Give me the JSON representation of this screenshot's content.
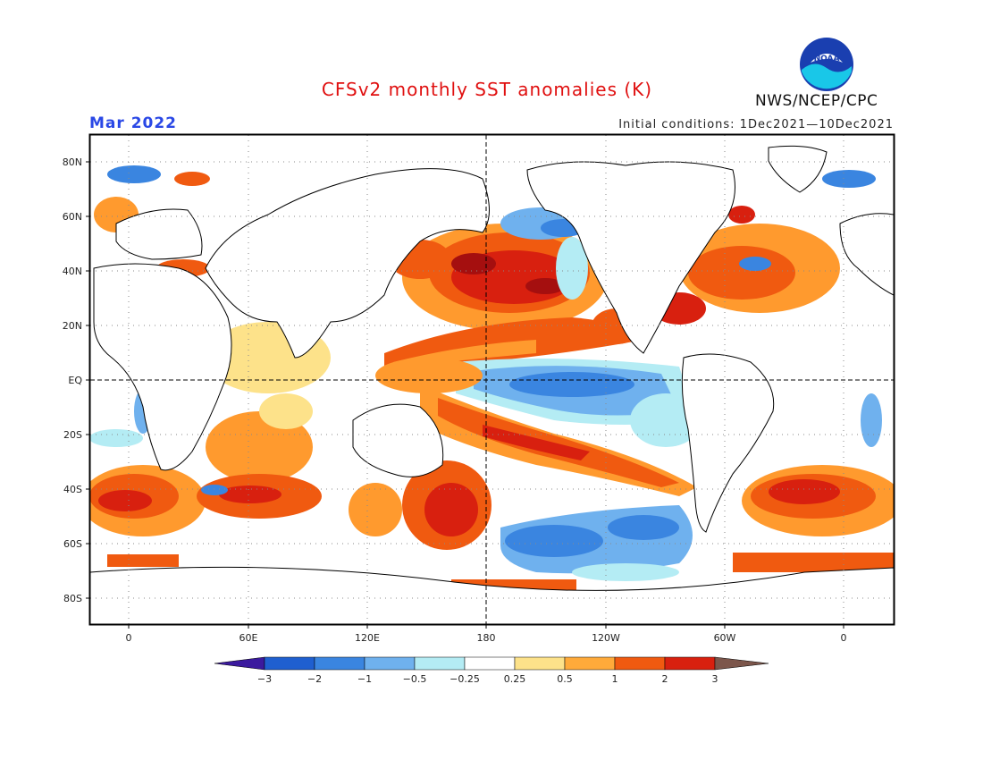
{
  "header": {
    "title": "CFSv2 monthly SST anomalies (K)",
    "month": "Mar 2022",
    "initial_conditions": "Initial conditions: 1Dec2021—10Dec2021",
    "agency": "NWS/NCEP/CPC",
    "logo_text": "NOAA"
  },
  "map": {
    "lat_labels": [
      "80N",
      "60N",
      "40N",
      "20N",
      "EQ",
      "20S",
      "40S",
      "60S",
      "80S"
    ],
    "lon_labels": [
      "0",
      "60E",
      "120E",
      "180",
      "120W",
      "60W",
      "0"
    ]
  },
  "legend": {
    "labels": [
      "−3",
      "−2",
      "−1",
      "−0.5",
      "−0.25",
      "0.25",
      "0.5",
      "1",
      "2",
      "3"
    ],
    "colors": [
      "#3b1a9e",
      "#1f5fd0",
      "#3a85e0",
      "#6fb1ee",
      "#b4ecf4",
      "#ffffff",
      "#fde28a",
      "#ffaa3a",
      "#f05a10",
      "#d8200f",
      "#a50f0f",
      "#7c564b"
    ]
  }
}
